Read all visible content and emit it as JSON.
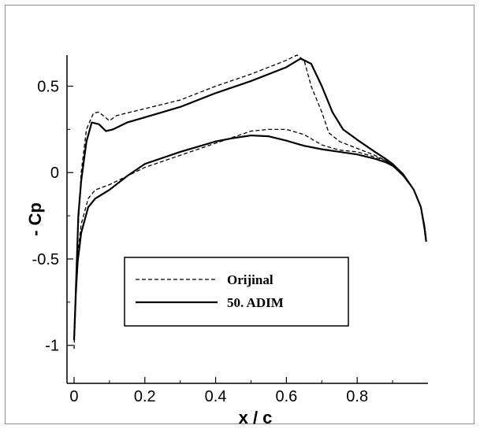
{
  "chart_data": {
    "type": "line",
    "title": "",
    "xlabel": "x / c",
    "ylabel": "- Cp",
    "xlim": [
      -0.02,
      1.0
    ],
    "ylim": [
      -1.22,
      0.68
    ],
    "x_ticks": [
      {
        "value": 0,
        "label": "0"
      },
      {
        "value": 0.2,
        "label": "0.2"
      },
      {
        "value": 0.4,
        "label": "0.4"
      },
      {
        "value": 0.6,
        "label": "0.6"
      },
      {
        "value": 0.8,
        "label": "0.8"
      }
    ],
    "y_ticks": [
      {
        "value": 0.5,
        "label": "0.5"
      },
      {
        "value": 0,
        "label": "0"
      },
      {
        "value": -0.5,
        "label": "-0.5"
      },
      {
        "value": -1,
        "label": "-1"
      }
    ],
    "grid": false,
    "legend_position": "lower-left",
    "series": [
      {
        "name": "Orijinal",
        "style": "dashed",
        "color": "#000000",
        "points": [
          [
            0.0,
            -1.02
          ],
          [
            0.003,
            -0.85
          ],
          [
            0.008,
            -0.5
          ],
          [
            0.012,
            -0.3
          ],
          [
            0.02,
            0.0
          ],
          [
            0.035,
            0.25
          ],
          [
            0.055,
            0.345
          ],
          [
            0.07,
            0.35
          ],
          [
            0.1,
            0.3
          ],
          [
            0.12,
            0.33
          ],
          [
            0.2,
            0.37
          ],
          [
            0.3,
            0.42
          ],
          [
            0.4,
            0.5
          ],
          [
            0.5,
            0.57
          ],
          [
            0.6,
            0.65
          ],
          [
            0.63,
            0.68
          ],
          [
            0.65,
            0.65
          ],
          [
            0.67,
            0.5
          ],
          [
            0.7,
            0.35
          ],
          [
            0.72,
            0.23
          ],
          [
            0.75,
            0.18
          ],
          [
            0.8,
            0.14
          ],
          [
            0.85,
            0.1
          ],
          [
            0.88,
            0.07
          ],
          [
            0.9,
            0.04
          ],
          [
            0.93,
            -0.02
          ],
          [
            0.96,
            -0.1
          ],
          [
            0.98,
            -0.2
          ],
          [
            0.99,
            -0.3
          ],
          [
            0.995,
            -0.38
          ],
          null,
          [
            0.0,
            -1.02
          ],
          [
            0.005,
            -0.7
          ],
          [
            0.01,
            -0.48
          ],
          [
            0.02,
            -0.3
          ],
          [
            0.04,
            -0.15
          ],
          [
            0.06,
            -0.1
          ],
          [
            0.1,
            -0.07
          ],
          [
            0.15,
            -0.02
          ],
          [
            0.2,
            0.03
          ],
          [
            0.3,
            0.1
          ],
          [
            0.4,
            0.17
          ],
          [
            0.5,
            0.24
          ],
          [
            0.55,
            0.25
          ],
          [
            0.6,
            0.25
          ],
          [
            0.65,
            0.22
          ],
          [
            0.7,
            0.16
          ],
          [
            0.75,
            0.13
          ],
          [
            0.8,
            0.12
          ],
          [
            0.85,
            0.09
          ],
          [
            0.88,
            0.07
          ],
          [
            0.9,
            0.04
          ],
          [
            0.93,
            -0.02
          ],
          [
            0.96,
            -0.1
          ],
          [
            0.98,
            -0.2
          ],
          [
            0.99,
            -0.3
          ],
          [
            0.995,
            -0.38
          ]
        ]
      },
      {
        "name": "50. ADIM",
        "style": "solid",
        "color": "#000000",
        "points": [
          [
            0.0,
            -0.97
          ],
          [
            0.003,
            -0.8
          ],
          [
            0.008,
            -0.5
          ],
          [
            0.012,
            -0.25
          ],
          [
            0.02,
            -0.05
          ],
          [
            0.035,
            0.18
          ],
          [
            0.05,
            0.29
          ],
          [
            0.07,
            0.28
          ],
          [
            0.09,
            0.24
          ],
          [
            0.11,
            0.25
          ],
          [
            0.15,
            0.29
          ],
          [
            0.2,
            0.32
          ],
          [
            0.3,
            0.38
          ],
          [
            0.4,
            0.46
          ],
          [
            0.5,
            0.53
          ],
          [
            0.6,
            0.61
          ],
          [
            0.64,
            0.66
          ],
          [
            0.67,
            0.63
          ],
          [
            0.7,
            0.5
          ],
          [
            0.73,
            0.35
          ],
          [
            0.76,
            0.25
          ],
          [
            0.8,
            0.19
          ],
          [
            0.85,
            0.12
          ],
          [
            0.88,
            0.08
          ],
          [
            0.9,
            0.05
          ],
          [
            0.93,
            -0.01
          ],
          [
            0.96,
            -0.1
          ],
          [
            0.98,
            -0.2
          ],
          [
            0.99,
            -0.32
          ],
          [
            0.995,
            -0.4
          ],
          null,
          [
            0.0,
            -0.97
          ],
          [
            0.005,
            -0.7
          ],
          [
            0.01,
            -0.52
          ],
          [
            0.02,
            -0.35
          ],
          [
            0.04,
            -0.2
          ],
          [
            0.06,
            -0.15
          ],
          [
            0.1,
            -0.1
          ],
          [
            0.15,
            -0.02
          ],
          [
            0.2,
            0.05
          ],
          [
            0.3,
            0.12
          ],
          [
            0.4,
            0.18
          ],
          [
            0.45,
            0.2
          ],
          [
            0.5,
            0.215
          ],
          [
            0.55,
            0.21
          ],
          [
            0.6,
            0.185
          ],
          [
            0.65,
            0.155
          ],
          [
            0.7,
            0.135
          ],
          [
            0.75,
            0.12
          ],
          [
            0.8,
            0.105
          ],
          [
            0.85,
            0.08
          ],
          [
            0.88,
            0.06
          ],
          [
            0.9,
            0.04
          ],
          [
            0.93,
            -0.01
          ],
          [
            0.96,
            -0.1
          ],
          [
            0.98,
            -0.2
          ],
          [
            0.99,
            -0.32
          ],
          [
            0.995,
            -0.4
          ]
        ]
      }
    ]
  }
}
